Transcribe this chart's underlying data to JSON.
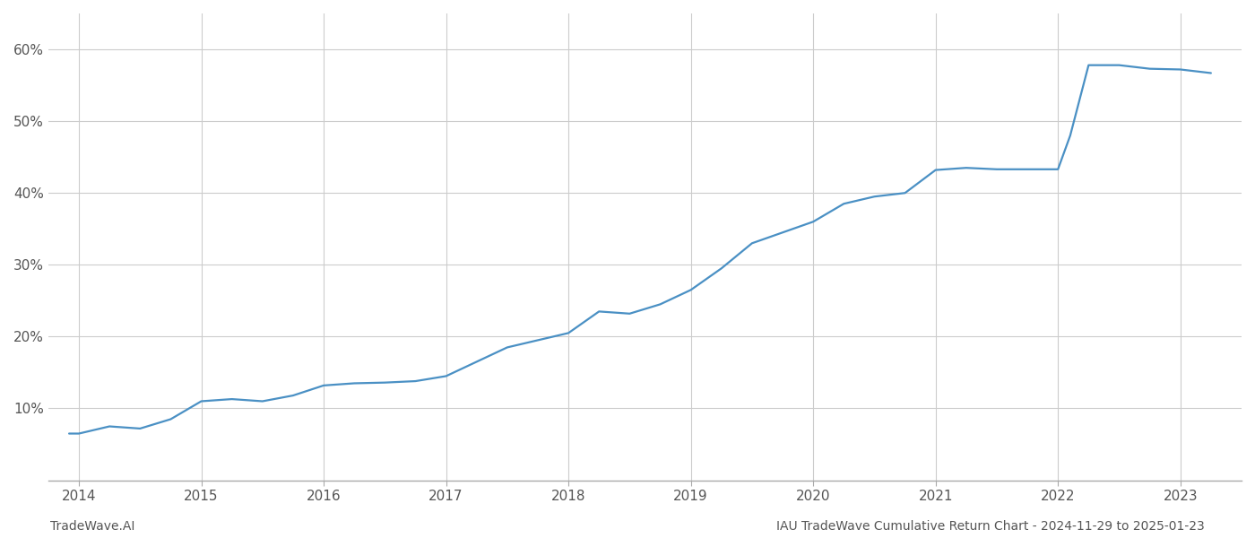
{
  "footer_left": "TradeWave.AI",
  "footer_right": "IAU TradeWave Cumulative Return Chart - 2024-11-29 to 2025-01-23",
  "line_color": "#4a90c4",
  "background_color": "#ffffff",
  "grid_color": "#cccccc",
  "x_years": [
    2014,
    2015,
    2016,
    2017,
    2018,
    2019,
    2020,
    2021,
    2022,
    2023
  ],
  "data_x": [
    2013.92,
    2014.0,
    2014.25,
    2014.5,
    2014.75,
    2015.0,
    2015.25,
    2015.5,
    2015.75,
    2016.0,
    2016.25,
    2016.5,
    2016.75,
    2017.0,
    2017.25,
    2017.5,
    2017.75,
    2018.0,
    2018.25,
    2018.5,
    2018.75,
    2019.0,
    2019.25,
    2019.5,
    2019.75,
    2020.0,
    2020.25,
    2020.5,
    2020.75,
    2021.0,
    2021.25,
    2021.5,
    2021.75,
    2022.0,
    2022.1,
    2022.25,
    2022.5,
    2022.75,
    2023.0,
    2023.1,
    2023.25
  ],
  "data_y": [
    6.5,
    6.5,
    7.5,
    7.2,
    8.5,
    11.0,
    11.3,
    11.0,
    11.8,
    13.2,
    13.5,
    13.6,
    13.8,
    14.5,
    16.5,
    18.5,
    19.5,
    20.5,
    23.5,
    23.2,
    24.5,
    26.5,
    29.5,
    33.0,
    34.5,
    36.0,
    38.5,
    39.5,
    40.0,
    43.2,
    43.5,
    43.3,
    43.3,
    43.3,
    48.0,
    57.8,
    57.8,
    57.3,
    57.2,
    57.0,
    56.7
  ],
  "ylim": [
    0,
    65
  ],
  "yticks": [
    10,
    20,
    30,
    40,
    50,
    60
  ],
  "xlim": [
    2013.75,
    2023.5
  ],
  "line_width": 1.6,
  "footer_fontsize": 10
}
